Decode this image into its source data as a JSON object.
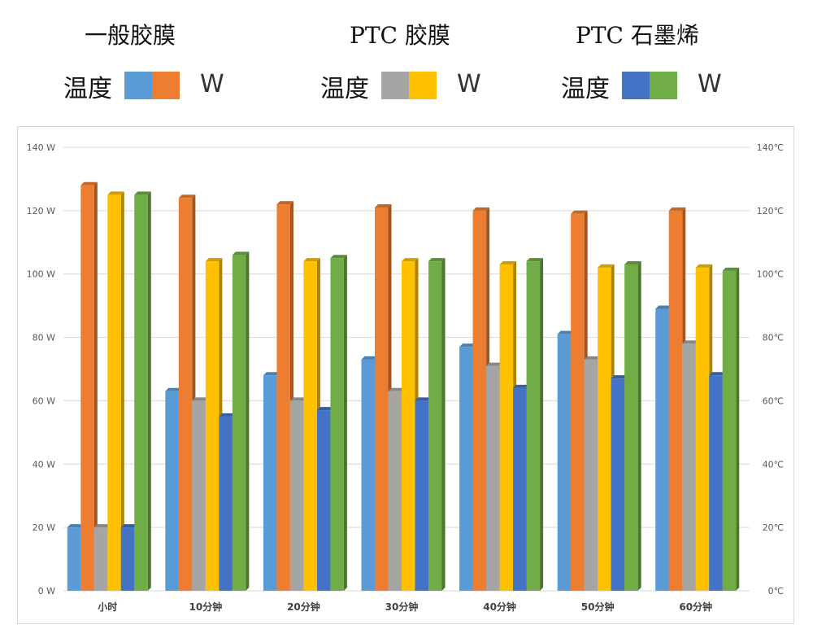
{
  "legend": {
    "groups": [
      {
        "title": "一般胶膜",
        "label": "温度",
        "unit": "W",
        "colors": [
          "#5b9bd5",
          "#ed7d31"
        ]
      },
      {
        "title": "PTC 胶膜",
        "label": "温度",
        "unit": "W",
        "colors": [
          "#a5a5a5",
          "#ffc000"
        ]
      },
      {
        "title": "PTC 石墨烯",
        "label": "温度",
        "unit": "W",
        "colors": [
          "#4472c4",
          "#70ad47"
        ]
      }
    ]
  },
  "chart_data": {
    "type": "bar",
    "categories": [
      "小时",
      "10分钟",
      "20分钟",
      "30分钟",
      "40分钟",
      "50分钟",
      "60分钟"
    ],
    "series": [
      {
        "color": "#5b9bd5",
        "axis": "right",
        "values": [
          20,
          63,
          68,
          73,
          77,
          81,
          89
        ]
      },
      {
        "color": "#ed7d31",
        "axis": "left",
        "values": [
          128,
          124,
          122,
          121,
          120,
          119,
          120
        ]
      },
      {
        "color": "#a5a5a5",
        "axis": "right",
        "values": [
          20,
          60,
          60,
          63,
          71,
          73,
          78
        ]
      },
      {
        "color": "#ffc000",
        "axis": "left",
        "values": [
          125,
          104,
          104,
          104,
          103,
          102,
          102
        ]
      },
      {
        "color": "#4472c4",
        "axis": "right",
        "values": [
          20,
          55,
          57,
          60,
          64,
          67,
          68
        ]
      },
      {
        "color": "#70ad47",
        "axis": "left",
        "values": [
          125,
          106,
          105,
          104,
          104,
          103,
          101
        ]
      }
    ],
    "left_axis": {
      "ylim": [
        0,
        140
      ],
      "ticks": [
        0,
        20,
        40,
        60,
        80,
        100,
        120,
        140
      ],
      "tick_labels": [
        "0 W",
        "20 W",
        "40 W",
        "60 W",
        "80 W",
        "100 W",
        "120 W",
        "140 W"
      ]
    },
    "right_axis": {
      "ylim": [
        0,
        140
      ],
      "ticks": [
        0,
        20,
        40,
        60,
        80,
        100,
        120,
        140
      ],
      "tick_labels": [
        "0℃",
        "20℃",
        "40℃",
        "60℃",
        "80℃",
        "100℃",
        "120℃",
        "140℃"
      ]
    },
    "grid": true
  }
}
